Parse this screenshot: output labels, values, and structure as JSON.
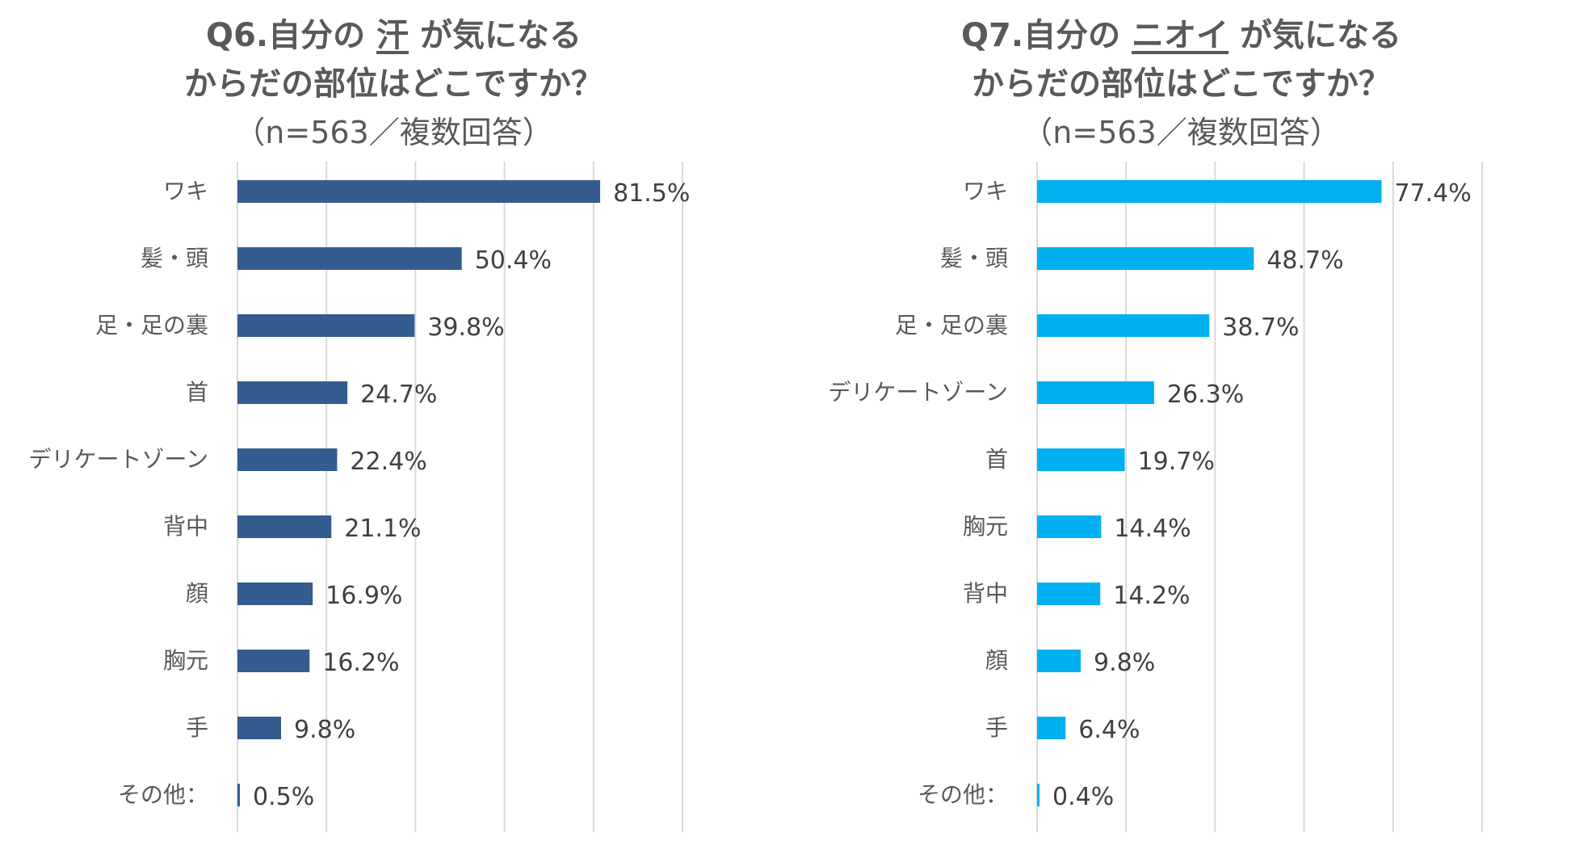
{
  "chart_data": [
    {
      "type": "bar",
      "orientation": "horizontal",
      "title": {
        "prefix": "Q6.自分の",
        "highlight": "汗",
        "suffix": "が気になる",
        "line2": "からだの部位はどこですか？",
        "line3": "（n=563／複数回答）"
      },
      "categories": [
        "ワキ",
        "髪・頭",
        "足・足の裏",
        "首",
        "デリケートゾーン",
        "背中",
        "顔",
        "胸元",
        "手",
        "その他："
      ],
      "values": [
        81.5,
        50.4,
        39.8,
        24.7,
        22.4,
        21.1,
        16.9,
        16.2,
        9.8,
        0.5
      ],
      "value_labels": [
        "81.5%",
        "50.4%",
        "39.8%",
        "24.7%",
        "22.4%",
        "21.1%",
        "16.9%",
        "16.2%",
        "9.8%",
        "0.5%"
      ],
      "xlim": [
        0,
        100
      ],
      "grid": true,
      "color": "#345C8E"
    },
    {
      "type": "bar",
      "orientation": "horizontal",
      "title": {
        "prefix": "Q7.自分の",
        "highlight": "ニオイ",
        "suffix": "が気になる",
        "line2": "からだの部位はどこですか？",
        "line3": "（n=563／複数回答）"
      },
      "categories": [
        "ワキ",
        "髪・頭",
        "足・足の裏",
        "デリケートゾーン",
        "首",
        "胸元",
        "背中",
        "顔",
        "手",
        "その他："
      ],
      "values": [
        77.4,
        48.7,
        38.7,
        26.3,
        19.7,
        14.4,
        14.2,
        9.8,
        6.4,
        0.4
      ],
      "value_labels": [
        "77.4%",
        "48.7%",
        "38.7%",
        "26.3%",
        "19.7%",
        "14.4%",
        "14.2%",
        "9.8%",
        "6.4%",
        "0.4%"
      ],
      "xlim": [
        0,
        100
      ],
      "grid": true,
      "color": "#00B0F0"
    }
  ]
}
